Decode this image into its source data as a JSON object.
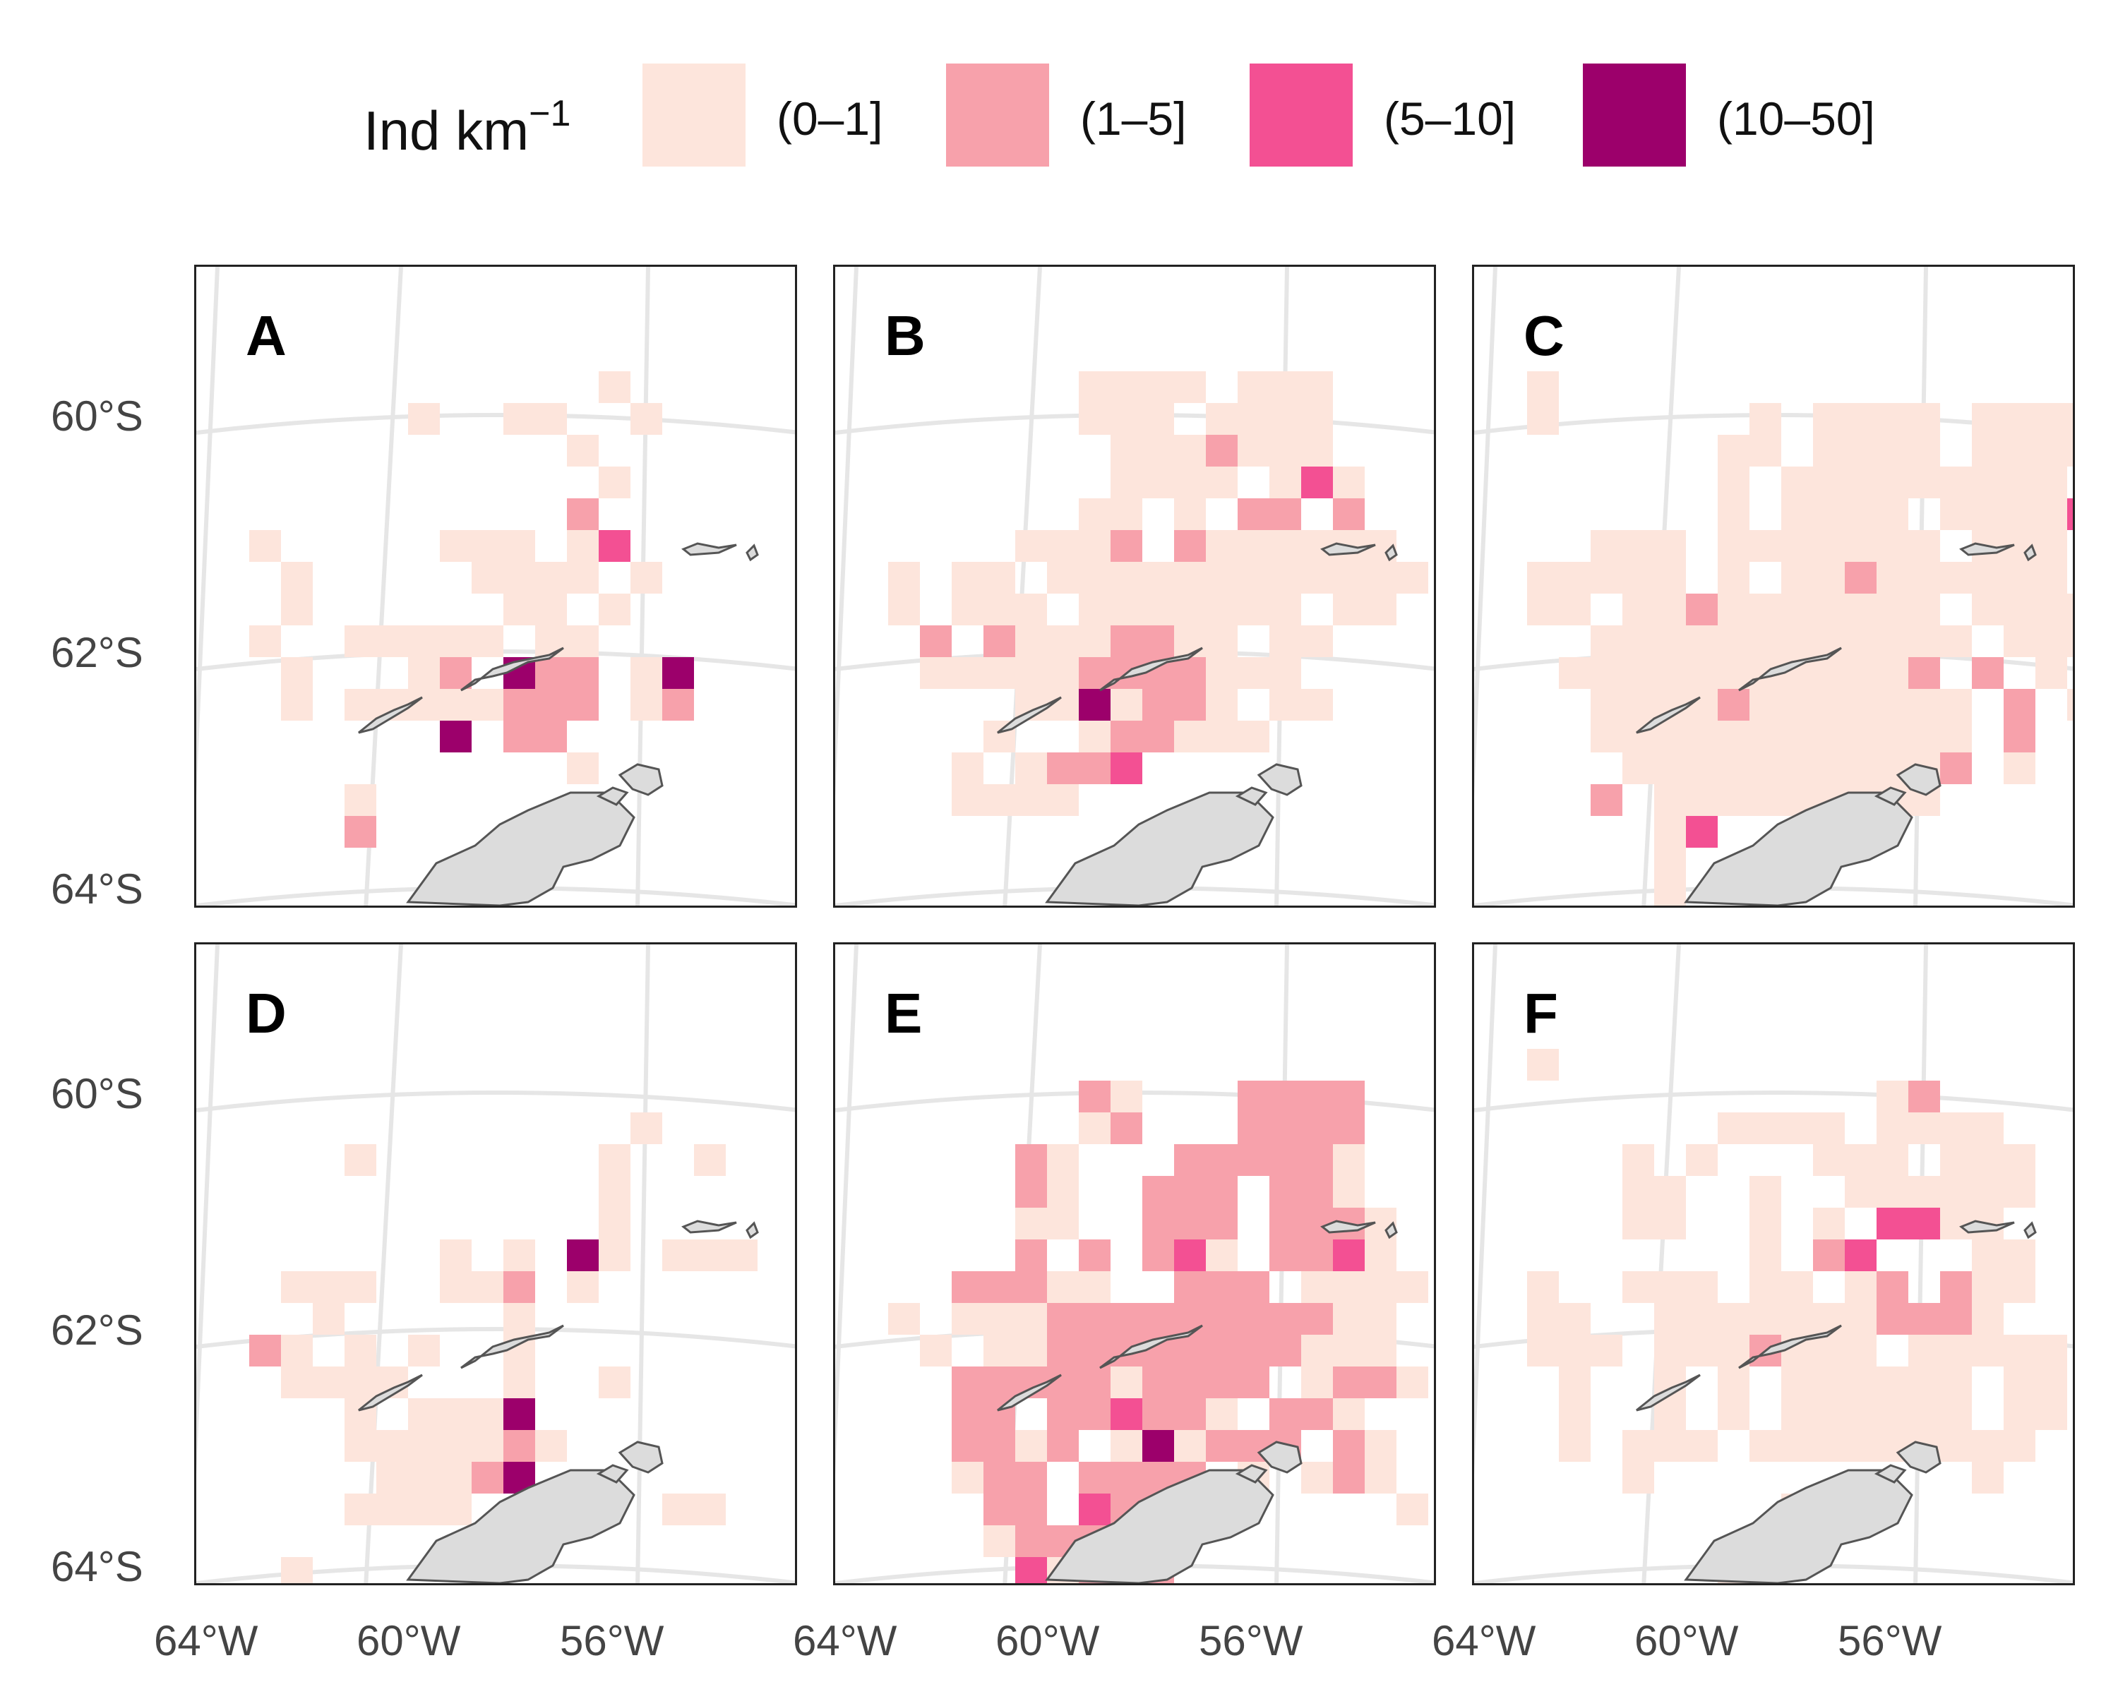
{
  "legend": {
    "title": "Ind km",
    "title_exponent": "−1",
    "classes": [
      {
        "label": "(0–1]",
        "color": "#fde5dc"
      },
      {
        "label": "(1–5]",
        "color": "#f7a1ab"
      },
      {
        "label": "(5–10]",
        "color": "#f35093"
      },
      {
        "label": "(10–50]",
        "color": "#9c006b"
      }
    ]
  },
  "axes": {
    "y_ticks": [
      "60°S",
      "62°S",
      "64°S"
    ],
    "x_ticks": [
      "64°W",
      "60°W",
      "56°W"
    ]
  },
  "colors": {
    "land": "#dcdcdc",
    "coast": "#555555",
    "graticule": "#e6e6e6",
    "frame": "#222222"
  },
  "panels": [
    {
      "letter": "A"
    },
    {
      "letter": "B"
    },
    {
      "letter": "C"
    },
    {
      "letter": "D"
    },
    {
      "letter": "E"
    },
    {
      "letter": "F"
    }
  ]
}
